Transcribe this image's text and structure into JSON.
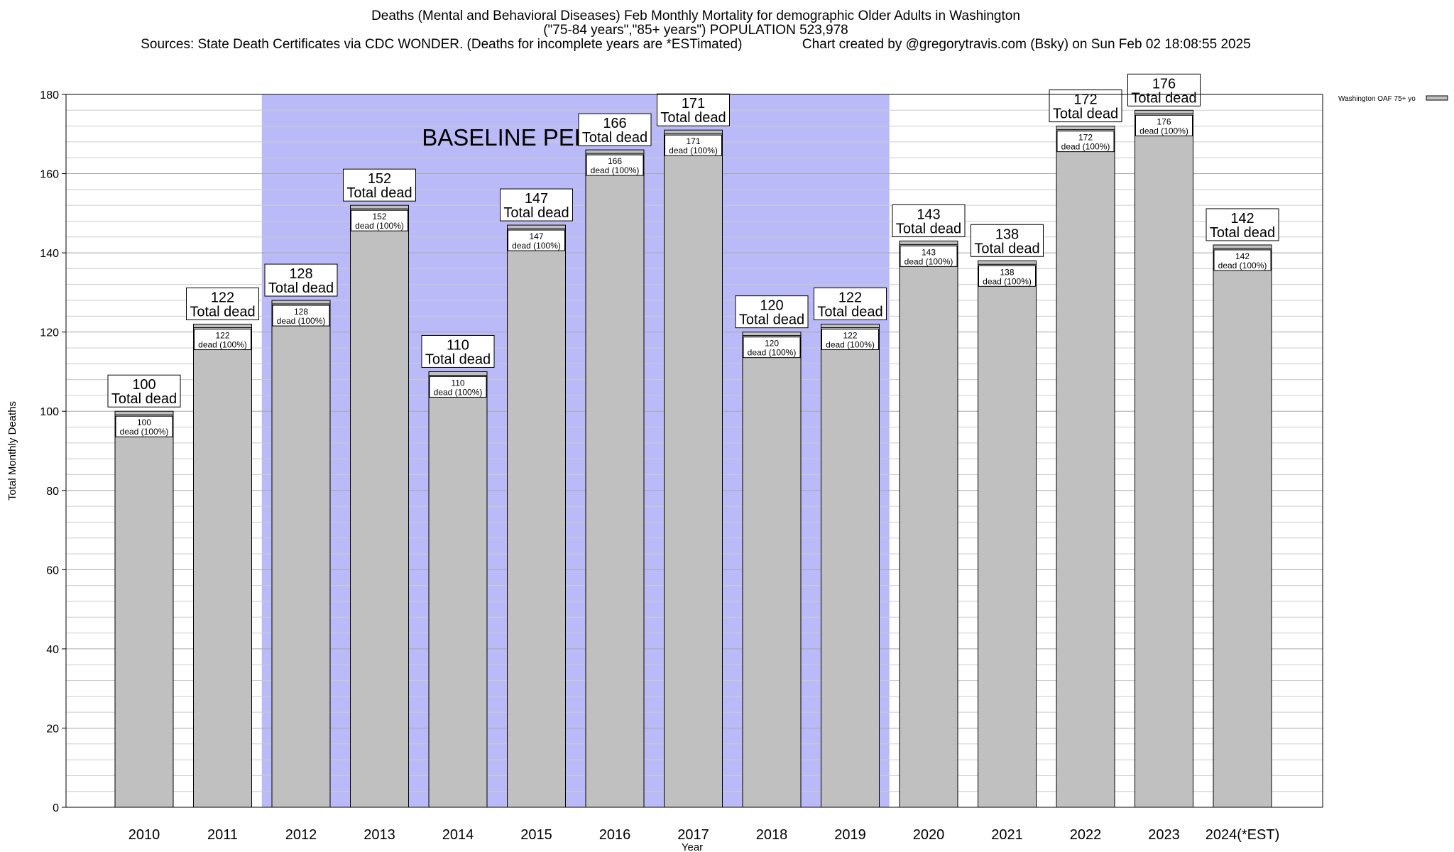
{
  "header": {
    "title": "Deaths (Mental and Behavioral Diseases) Feb Monthly Mortality for demographic Older Adults in Washington",
    "subtitle": "(\"75-84 years\",\"85+ years\") POPULATION 523,978",
    "sources": "Sources: State Death Certificates via CDC WONDER. (Deaths for incomplete years are *ESTimated)                Chart created by @gregorytravis.com (Bsky) on Sun Feb 02 18:08:55 2025"
  },
  "chart_data": {
    "type": "bar",
    "title": "Deaths (Mental and Behavioral Diseases) Feb Monthly Mortality for demographic Older Adults in Washington",
    "xlabel": "Year",
    "ylabel": "Total Monthly Deaths",
    "ylim": [
      0,
      180
    ],
    "yticks": [
      0,
      20,
      40,
      60,
      80,
      100,
      120,
      140,
      160,
      180
    ],
    "grid": true,
    "legend_position": "top-right",
    "categories": [
      "2010",
      "2011",
      "2012",
      "2013",
      "2014",
      "2015",
      "2016",
      "2017",
      "2018",
      "2019",
      "2020",
      "2021",
      "2022",
      "2023",
      "2024(*EST)"
    ],
    "series": [
      {
        "name": "Washington OAF 75+ yo",
        "values": [
          100,
          122,
          128,
          152,
          110,
          147,
          166,
          171,
          120,
          122,
          143,
          138,
          172,
          176,
          142
        ],
        "color": "#c0c0c0"
      }
    ],
    "total_label_text": "Total dead",
    "inner_label_text": "dead (100%)",
    "baseline": {
      "label": "BASELINE PERIOD",
      "start": "2012",
      "end": "2019",
      "color": "#babaf8"
    }
  }
}
